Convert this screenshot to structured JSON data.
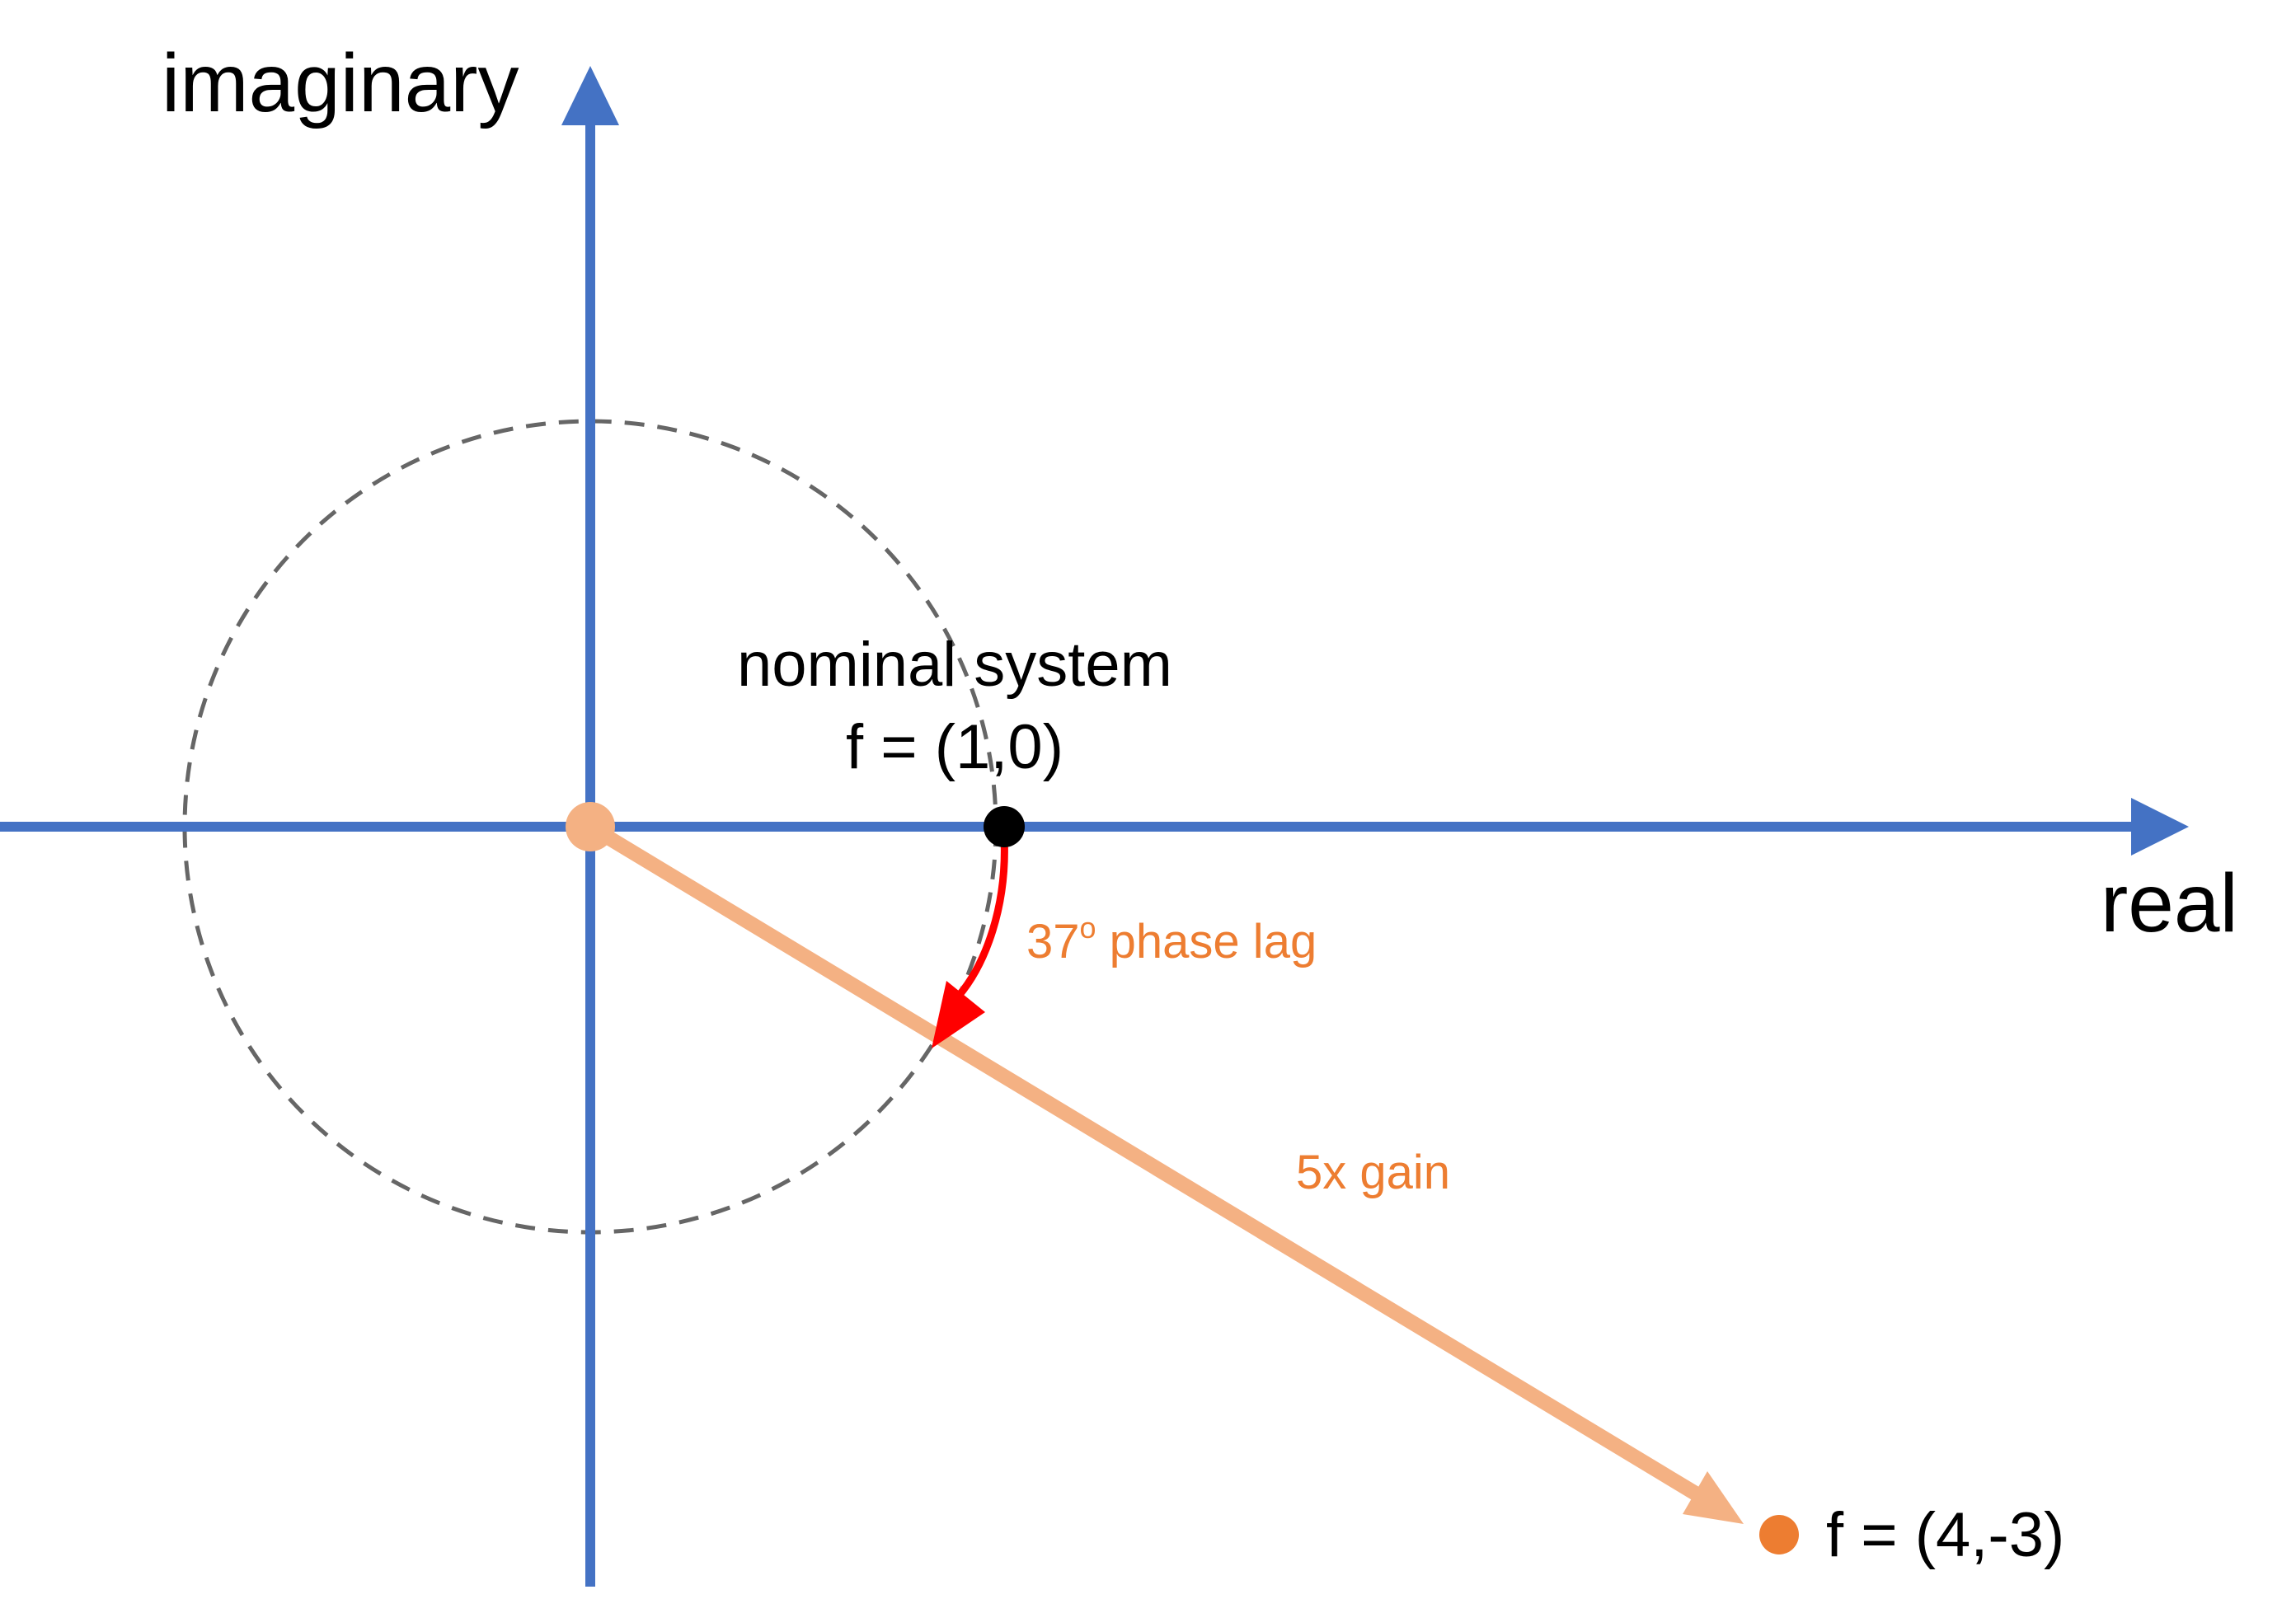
{
  "axes": {
    "imaginary_label": "imaginary",
    "real_label": "real"
  },
  "nominal": {
    "title": "nominal system",
    "value": "f = (1,0)",
    "re": 1,
    "im": 0
  },
  "result": {
    "value": "f = (4,-3)",
    "re": 4,
    "im": -3
  },
  "annotations": {
    "phase_number": "37",
    "phase_degree": "o",
    "phase_text": " phase lag",
    "gain_label": "5x gain"
  },
  "colors": {
    "axis": "#4472C4",
    "circle": "#666666",
    "vector": "#F4B183",
    "origin_dot": "#F4B183",
    "result_dot": "#ED7D31",
    "phase_arrow": "#FF0000",
    "annotation_text": "#ED7D31",
    "nominal_dot": "#000000"
  }
}
